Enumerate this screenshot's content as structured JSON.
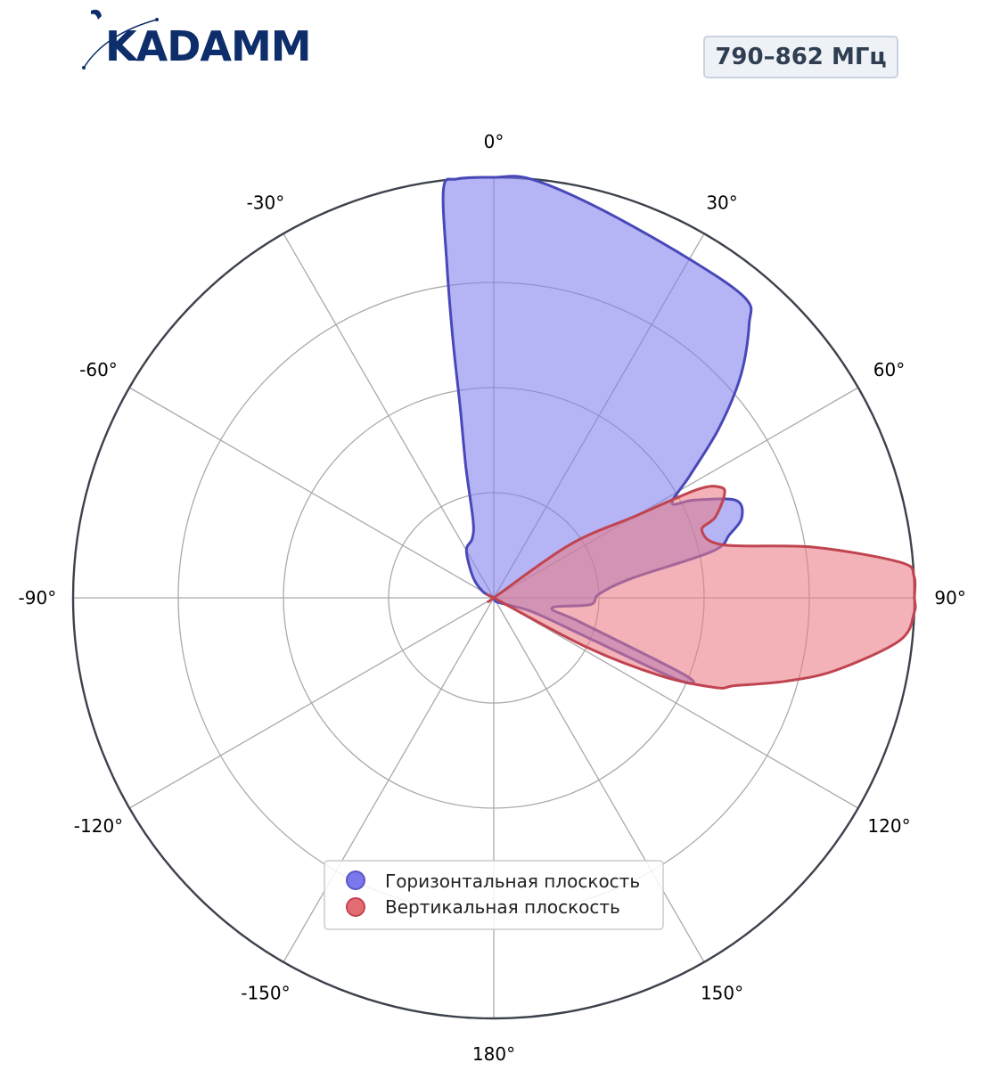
{
  "badge": "790–862 МГц",
  "logo_text": "KADAMM",
  "colors": {
    "horizontal_fill": "#8080f0",
    "horizontal_line": "#4848b8",
    "vertical_fill": "#e87a84",
    "vertical_line": "#c04450",
    "grid": "#aaaaaa",
    "outer_ring": "#3c414c",
    "logo": "#0d2d6b"
  },
  "chart_data": {
    "type": "polar",
    "rlim": [
      0,
      1
    ],
    "radial_gridlines": [
      0.25,
      0.5,
      0.75,
      1.0
    ],
    "angle_ticks": [
      {
        "deg": 0,
        "label": "0°"
      },
      {
        "deg": 30,
        "label": "30°"
      },
      {
        "deg": 60,
        "label": "60°"
      },
      {
        "deg": 90,
        "label": "90°"
      },
      {
        "deg": 120,
        "label": "120°"
      },
      {
        "deg": 150,
        "label": "150°"
      },
      {
        "deg": 180,
        "label": "180°"
      },
      {
        "deg": -150,
        "label": "-150°"
      },
      {
        "deg": -120,
        "label": "-120°"
      },
      {
        "deg": -90,
        "label": "-90°"
      },
      {
        "deg": -60,
        "label": "-60°"
      },
      {
        "deg": -30,
        "label": "-30°"
      }
    ],
    "legend_position": "bottom-center",
    "series": [
      {
        "name": "Горизонтальная плоскость",
        "points": [
          [
            -90,
            0.0
          ],
          [
            -60,
            0.03
          ],
          [
            -45,
            0.07
          ],
          [
            -30,
            0.13
          ],
          [
            -20,
            0.15
          ],
          [
            -15,
            0.19
          ],
          [
            -12,
            0.32
          ],
          [
            -10,
            0.46
          ],
          [
            -9,
            0.62
          ],
          [
            -8,
            0.8
          ],
          [
            -7,
            0.98
          ],
          [
            -5,
            1.0
          ],
          [
            0,
            1.0
          ],
          [
            5,
            1.0
          ],
          [
            15,
            0.96
          ],
          [
            30,
            0.93
          ],
          [
            40,
            0.93
          ],
          [
            43,
            0.89
          ],
          [
            48,
            0.79
          ],
          [
            53,
            0.67
          ],
          [
            58,
            0.55
          ],
          [
            62,
            0.48
          ],
          [
            64,
            0.53
          ],
          [
            68,
            0.62
          ],
          [
            72,
            0.62
          ],
          [
            75,
            0.58
          ],
          [
            78,
            0.53
          ],
          [
            82,
            0.33
          ],
          [
            88,
            0.25
          ],
          [
            94,
            0.23
          ],
          [
            100,
            0.14
          ],
          [
            106,
            0.22
          ],
          [
            112,
            0.49
          ],
          [
            114,
            0.48
          ],
          [
            113,
            0.25
          ],
          [
            110,
            0.1
          ],
          [
            120,
            0.03
          ],
          [
            150,
            0.01
          ],
          [
            180,
            0.0
          ]
        ]
      },
      {
        "name": "Вертикальная плоскость",
        "points": [
          [
            -120,
            0.0
          ],
          [
            -60,
            0.0
          ],
          [
            0,
            0.0
          ],
          [
            40,
            0.0
          ],
          [
            55,
            0.22
          ],
          [
            60,
            0.39
          ],
          [
            62,
            0.55
          ],
          [
            64,
            0.6
          ],
          [
            66,
            0.6
          ],
          [
            70,
            0.56
          ],
          [
            72,
            0.52
          ],
          [
            77,
            0.56
          ],
          [
            81,
            0.77
          ],
          [
            85,
            0.97
          ],
          [
            87,
            1.0
          ],
          [
            90,
            1.0
          ],
          [
            92,
            1.0
          ],
          [
            96,
            0.97
          ],
          [
            102,
            0.83
          ],
          [
            106,
            0.72
          ],
          [
            110,
            0.61
          ],
          [
            112,
            0.57
          ],
          [
            115,
            0.44
          ],
          [
            118,
            0.25
          ],
          [
            120,
            0.0
          ],
          [
            180,
            0.0
          ]
        ]
      }
    ]
  }
}
